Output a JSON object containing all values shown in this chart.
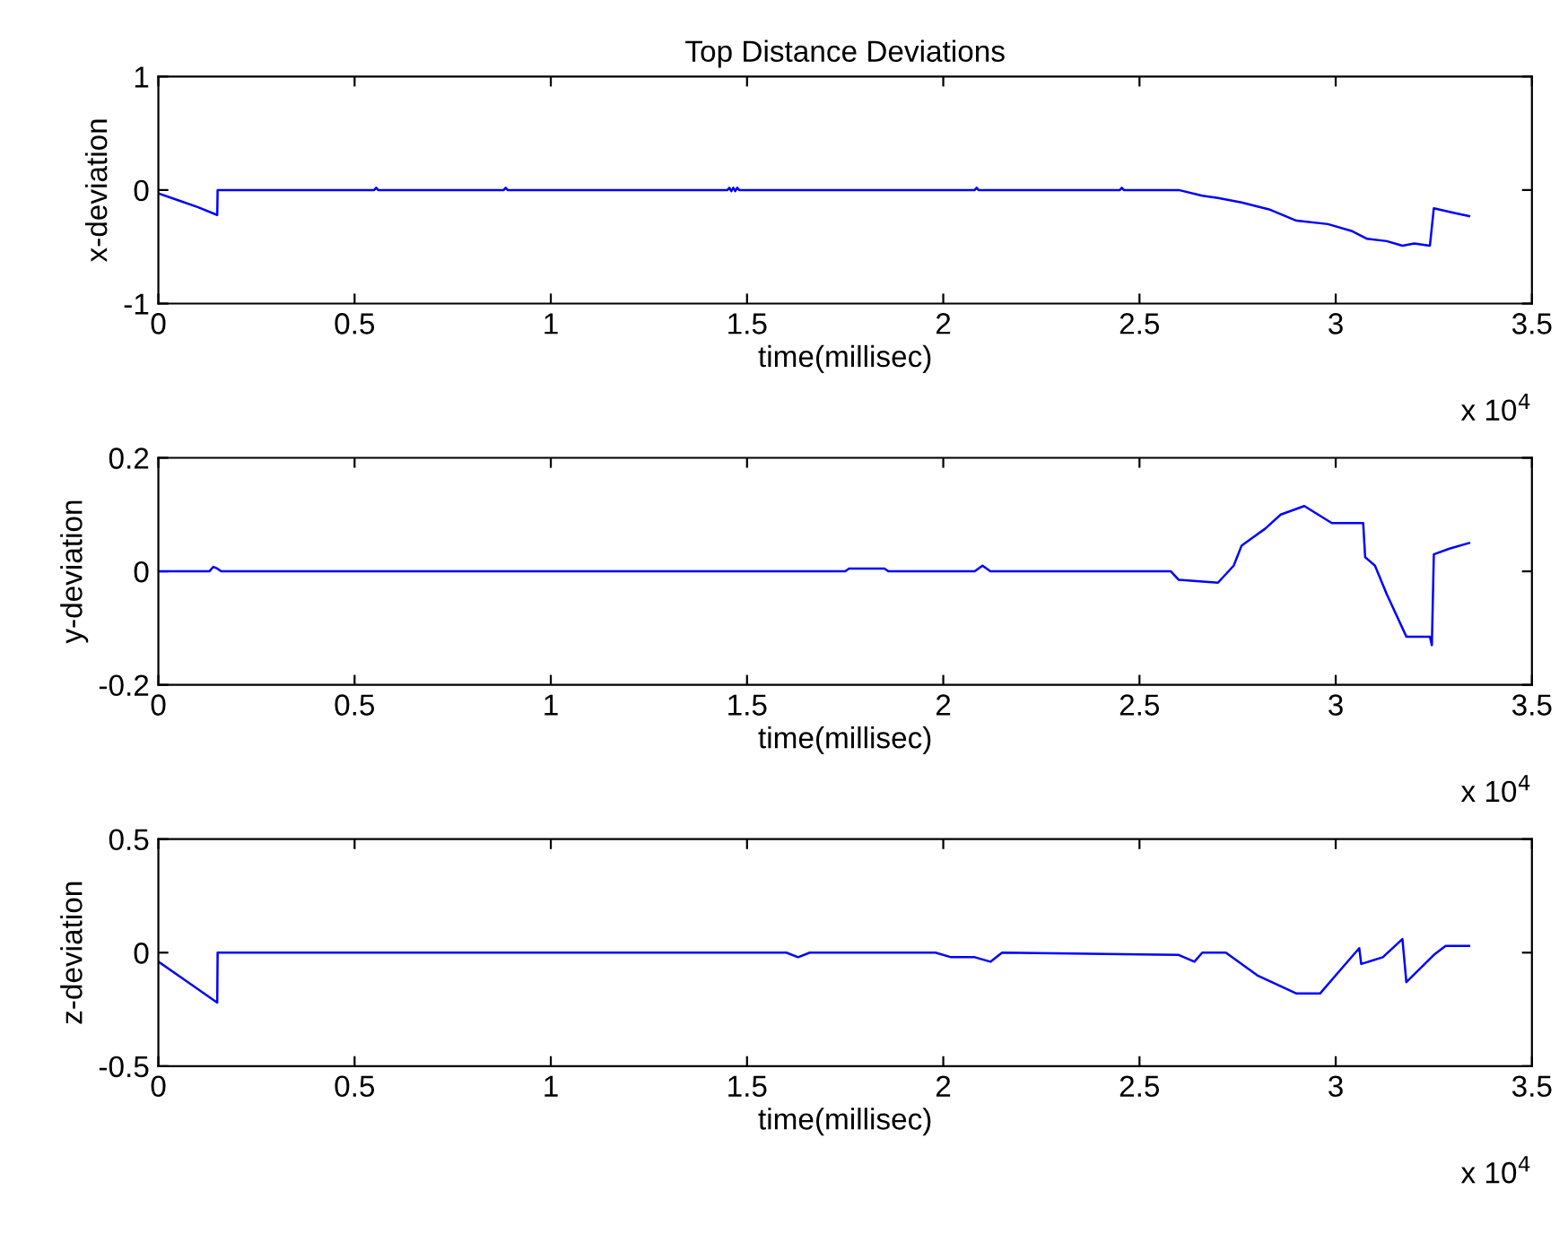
{
  "chart_data": [
    {
      "type": "line",
      "title": "Top Distance Deviations",
      "xlabel": "time(millisec)",
      "ylabel": "x-deviation",
      "annotations": [
        "x 10$^{4}$"
      ],
      "grid": false,
      "marker": "none",
      "line_style": "solid",
      "xlim": [
        0,
        3.5
      ],
      "xticks": [
        0,
        0.5,
        1,
        1.5,
        2,
        2.5,
        3,
        3.5
      ],
      "ylim": [
        -1,
        1
      ],
      "yticks": [
        -1,
        0,
        1
      ],
      "series": [
        {
          "color": "#0000ff",
          "x": [
            0,
            0.05,
            0.1,
            0.15,
            0.151,
            0.55,
            0.555,
            0.56,
            0.88,
            0.885,
            0.89,
            1.45,
            1.455,
            1.46,
            1.465,
            1.47,
            1.475,
            1.48,
            1.75,
            1.87,
            2.08,
            2.085,
            2.09,
            2.45,
            2.455,
            2.46,
            2.6,
            2.66,
            2.7,
            2.76,
            2.83,
            2.9,
            2.98,
            3.04,
            3.08,
            3.13,
            3.17,
            3.2,
            3.24,
            3.25,
            3.3,
            3.34
          ],
          "values": [
            -0.03,
            -0.09,
            -0.15,
            -0.22,
            0,
            0,
            0.02,
            0,
            0,
            0.02,
            0,
            0,
            0.02,
            -0.01,
            0.02,
            -0.01,
            0.02,
            0,
            0,
            0,
            0,
            0.02,
            0,
            0,
            0.02,
            0,
            0,
            -0.05,
            -0.07,
            -0.11,
            -0.17,
            -0.27,
            -0.3,
            -0.36,
            -0.43,
            -0.45,
            -0.49,
            -0.47,
            -0.49,
            -0.16,
            -0.2,
            -0.23
          ]
        }
      ]
    },
    {
      "type": "line",
      "xlabel": "time(millisec)",
      "ylabel": "y-deviation",
      "annotations": [
        "x 10$^{4}$"
      ],
      "grid": false,
      "marker": "none",
      "line_style": "solid",
      "xlim": [
        0,
        3.5
      ],
      "xticks": [
        0,
        0.5,
        1,
        1.5,
        2,
        2.5,
        3,
        3.5
      ],
      "ylim": [
        -0.2,
        0.2
      ],
      "yticks": [
        -0.2,
        0,
        0.2
      ],
      "series": [
        {
          "color": "#0000ff",
          "x": [
            0,
            0.13,
            0.14,
            0.15,
            0.16,
            1.75,
            1.76,
            1.85,
            1.86,
            2.08,
            2.1,
            2.12,
            2.58,
            2.6,
            2.7,
            2.74,
            2.76,
            2.79,
            2.82,
            2.86,
            2.92,
            2.99,
            3.07,
            3.075,
            3.1,
            3.13,
            3.18,
            3.24,
            3.245,
            3.25,
            3.29,
            3.34
          ],
          "values": [
            0,
            0,
            0.008,
            0.005,
            0,
            0,
            0.005,
            0.005,
            0,
            0,
            0.01,
            0,
            0,
            -0.015,
            -0.02,
            0.01,
            0.045,
            0.06,
            0.075,
            0.1,
            0.115,
            0.085,
            0.085,
            0.025,
            0.01,
            -0.04,
            -0.115,
            -0.115,
            -0.13,
            0.03,
            0.04,
            0.05
          ]
        }
      ]
    },
    {
      "type": "line",
      "xlabel": "time(millisec)",
      "ylabel": "z-deviation",
      "annotations": [
        "x 10$^{4}$"
      ],
      "grid": false,
      "marker": "none",
      "line_style": "solid",
      "xlim": [
        0,
        3.5
      ],
      "xticks": [
        0,
        0.5,
        1,
        1.5,
        2,
        2.5,
        3,
        3.5
      ],
      "ylim": [
        -0.5,
        0.5
      ],
      "yticks": [
        -0.5,
        0,
        0.5
      ],
      "series": [
        {
          "color": "#0000ff",
          "x": [
            0,
            0.05,
            0.1,
            0.15,
            0.151,
            1.6,
            1.63,
            1.66,
            1.98,
            2.02,
            2.08,
            2.12,
            2.15,
            2.6,
            2.64,
            2.66,
            2.72,
            2.8,
            2.9,
            2.96,
            3.01,
            3.06,
            3.065,
            3.12,
            3.17,
            3.18,
            3.25,
            3.28,
            3.34
          ],
          "values": [
            -0.04,
            -0.1,
            -0.16,
            -0.22,
            0,
            0,
            -0.02,
            0,
            0,
            -0.02,
            -0.02,
            -0.04,
            0,
            -0.01,
            -0.04,
            0,
            0,
            -0.1,
            -0.18,
            -0.18,
            -0.08,
            0.02,
            -0.05,
            -0.02,
            0.06,
            -0.13,
            -0.01,
            0.03,
            0.03
          ]
        }
      ]
    }
  ]
}
